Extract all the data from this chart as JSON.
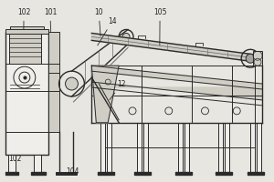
{
  "bg_color": "#e8e6e0",
  "line_color": "#666666",
  "dark_line": "#2a2a2a",
  "fill_light": "#d0cdc5",
  "fill_medium": "#a8a49c",
  "fill_white": "#f0eeea",
  "labels": [
    "102",
    "101",
    "10",
    "14",
    "105",
    "12",
    "102",
    "104"
  ]
}
